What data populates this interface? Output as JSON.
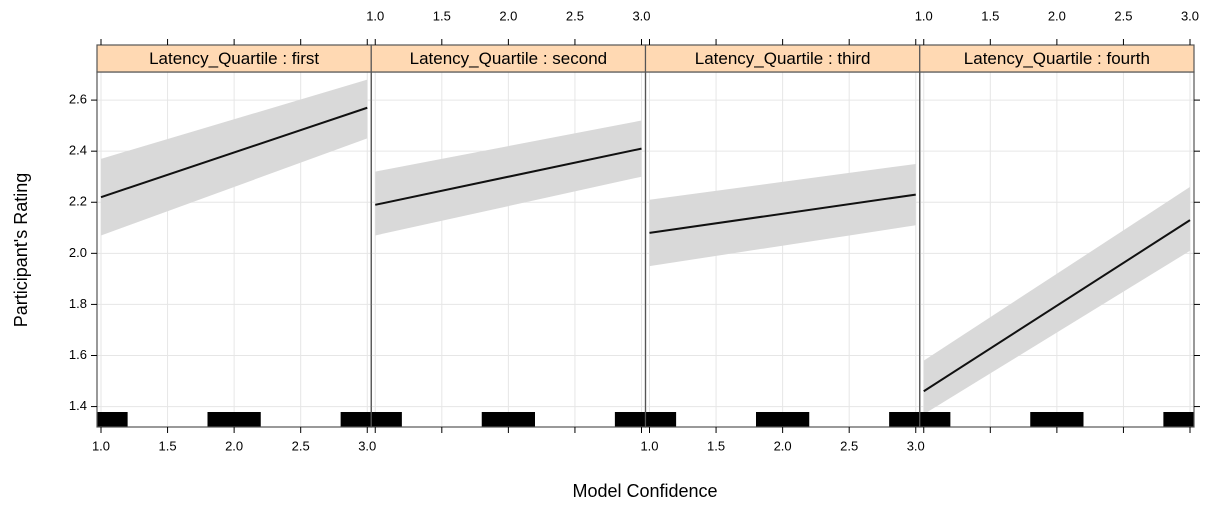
{
  "chart_data": {
    "type": "line",
    "xlabel": "Model Confidence",
    "ylabel": "Participant's Rating",
    "xlim": [
      0.97,
      3.03
    ],
    "ylim": [
      1.32,
      2.71
    ],
    "xticks": [
      {
        "value": 1,
        "label": "1.0"
      },
      1.5,
      {
        "value": 2,
        "label": "2.0"
      },
      2.5,
      {
        "value": 3,
        "label": "3.0"
      }
    ],
    "yticks": [
      1.4,
      1.6,
      1.8,
      {
        "value": 2,
        "label": "2.0"
      },
      2.2,
      2.4,
      2.6
    ],
    "grid": true,
    "line_color": "#111111",
    "band_color": "#d9d9d9",
    "strip_color": "#ffd9b3",
    "rug_color": "#000000",
    "rug_x": [
      1,
      2,
      3
    ],
    "panels": [
      {
        "strip": "Latency_Quartile : first",
        "x": [
          1,
          3
        ],
        "values": [
          2.22,
          2.57
        ],
        "lower": [
          2.07,
          2.45
        ],
        "upper": [
          2.37,
          2.68
        ]
      },
      {
        "strip": "Latency_Quartile : second",
        "x": [
          1,
          3
        ],
        "values": [
          2.19,
          2.41
        ],
        "lower": [
          2.07,
          2.3
        ],
        "upper": [
          2.32,
          2.52
        ]
      },
      {
        "strip": "Latency_Quartile : third",
        "x": [
          1,
          3
        ],
        "values": [
          2.08,
          2.23
        ],
        "lower": [
          1.95,
          2.11
        ],
        "upper": [
          2.21,
          2.35
        ]
      },
      {
        "strip": "Latency_Quartile : fourth",
        "x": [
          1,
          3
        ],
        "values": [
          1.46,
          2.13
        ],
        "lower": [
          1.37,
          2.01
        ],
        "upper": [
          1.58,
          2.26
        ]
      }
    ]
  }
}
